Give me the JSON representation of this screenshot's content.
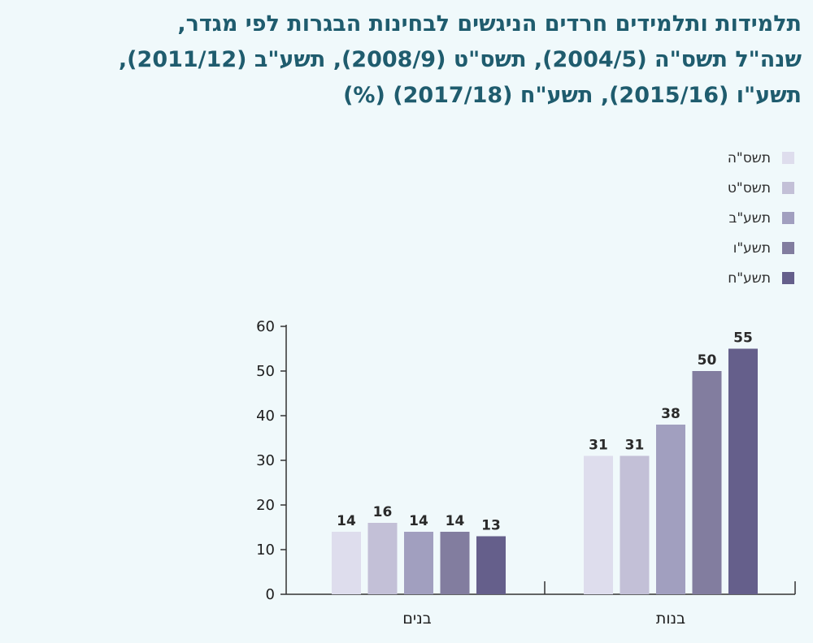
{
  "chart_data": {
    "type": "bar",
    "title_lines": [
      "תלמידות ותלמידים חרדים הניגשים לבחינות הבגרות לפי מגדר,",
      "שנה\"ל תשס\"ה (2004/5), תשס\"ט (2008/9), תשע\"ב (2011/12),",
      "תשע\"ו (2015/16), תשע\"ח (2017/18) (%)"
    ],
    "categories": [
      "בנות",
      "בנים"
    ],
    "series": [
      {
        "name": "תשס\"ה",
        "color": "#dedded",
        "values": [
          31,
          14
        ]
      },
      {
        "name": "תשס\"ט",
        "color": "#c3c0d7",
        "values": [
          31,
          16
        ]
      },
      {
        "name": "תשע\"ב",
        "color": "#a19fbf",
        "values": [
          38,
          14
        ]
      },
      {
        "name": "תשע\"ו",
        "color": "#827d9f",
        "values": [
          50,
          14
        ]
      },
      {
        "name": "תשע\"ח",
        "color": "#655f8b",
        "values": [
          55,
          13
        ]
      }
    ],
    "data_labels": [
      [
        31,
        14
      ],
      [
        31,
        16
      ],
      [
        38,
        14
      ],
      [
        50,
        14
      ],
      [
        55,
        13
      ]
    ],
    "ylim": [
      0,
      60
    ],
    "yticks": [
      "0",
      "10",
      "20",
      "30",
      "40",
      "50",
      "60"
    ],
    "xlabel": "",
    "ylabel": "",
    "legend_position": "top-right",
    "grid": false
  }
}
